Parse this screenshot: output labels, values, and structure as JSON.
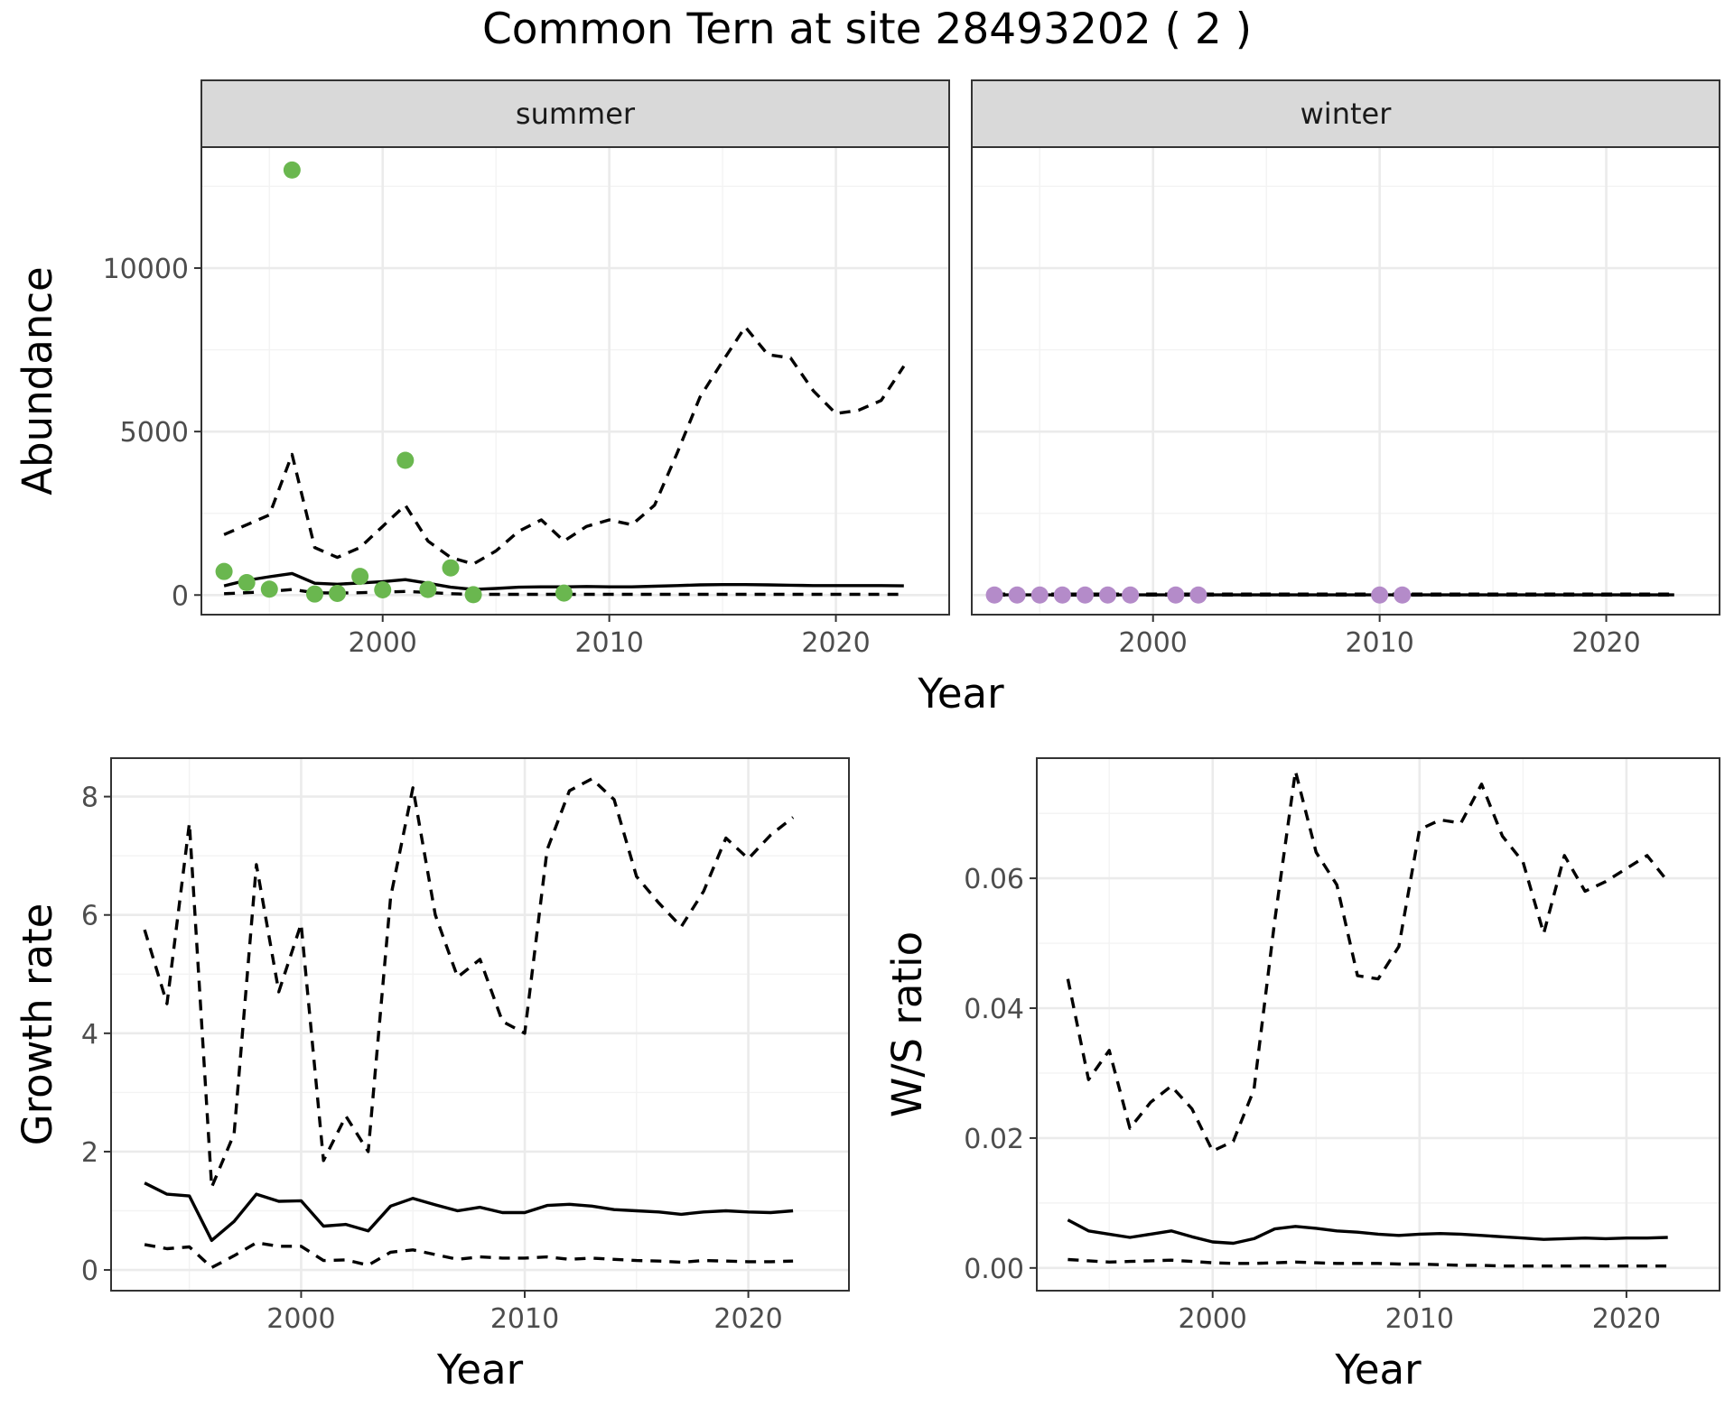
{
  "title": "Common Tern at site 28493202 ( 2 )",
  "colors": {
    "summer_points": "#6ab74f",
    "winter_points": "#b48bc9",
    "strip_fill": "#d9d9d9",
    "lines": "#000000"
  },
  "chart_data": [
    {
      "type": "line",
      "panel": "summer",
      "strip": "summer",
      "xlabel": "",
      "ylabel": "Abundance",
      "xlim": [
        1992,
        2025
      ],
      "ylim": [
        -600,
        13700
      ],
      "xticks": [
        2000,
        2010,
        2020
      ],
      "yticks": [
        0,
        5000,
        10000
      ],
      "ytick_labels": [
        "0",
        "5000",
        "10000"
      ],
      "x": [
        1993,
        1994,
        1995,
        1996,
        1997,
        1998,
        1999,
        2000,
        2001,
        2002,
        2003,
        2004,
        2005,
        2006,
        2007,
        2008,
        2009,
        2010,
        2011,
        2012,
        2013,
        2014,
        2015,
        2016,
        2017,
        2018,
        2019,
        2020,
        2021,
        2022,
        2023
      ],
      "series": [
        {
          "role": "upper",
          "style": "dashed",
          "values": [
            1850,
            2150,
            2450,
            4300,
            1450,
            1150,
            1450,
            2100,
            2750,
            1650,
            1150,
            950,
            1350,
            1950,
            2300,
            1650,
            2100,
            2300,
            2150,
            2750,
            4350,
            6050,
            7150,
            8200,
            7350,
            7250,
            6250,
            5550,
            5650,
            5950,
            7000
          ]
        },
        {
          "role": "estimate",
          "style": "solid",
          "values": [
            280,
            450,
            560,
            660,
            360,
            330,
            370,
            410,
            470,
            360,
            240,
            170,
            200,
            240,
            250,
            250,
            260,
            250,
            250,
            270,
            290,
            310,
            320,
            320,
            310,
            300,
            290,
            290,
            290,
            290,
            280
          ]
        },
        {
          "role": "lower",
          "style": "dashed",
          "values": [
            40,
            70,
            110,
            170,
            70,
            60,
            70,
            90,
            110,
            80,
            40,
            20,
            20,
            20,
            20,
            20,
            20,
            20,
            20,
            20,
            20,
            20,
            20,
            20,
            20,
            20,
            20,
            20,
            20,
            20,
            20
          ]
        }
      ],
      "points": {
        "x": [
          1993,
          1994,
          1995,
          1996,
          1997,
          1998,
          1999,
          2000,
          2001,
          2002,
          2003,
          2004,
          2008
        ],
        "y": [
          720,
          380,
          180,
          13000,
          30,
          50,
          570,
          160,
          4120,
          170,
          830,
          10,
          60
        ]
      }
    },
    {
      "type": "line",
      "panel": "winter",
      "strip": "winter",
      "xlabel": "",
      "ylabel": "",
      "xlim": [
        1992,
        2025
      ],
      "ylim": [
        -600,
        13700
      ],
      "xticks": [
        2000,
        2010,
        2020
      ],
      "x": [
        1993,
        2023
      ],
      "series": [
        {
          "role": "upper",
          "style": "dashed",
          "values": [
            30,
            30
          ]
        },
        {
          "role": "estimate",
          "style": "solid",
          "values": [
            5,
            5
          ]
        },
        {
          "role": "lower",
          "style": "dashed",
          "values": [
            0,
            0
          ]
        }
      ],
      "points": {
        "x": [
          1993,
          1994,
          1995,
          1996,
          1997,
          1998,
          1999,
          2001,
          2002,
          2010,
          2011
        ],
        "y": [
          0,
          0,
          0,
          0,
          0,
          0,
          0,
          0,
          0,
          0,
          0
        ]
      }
    },
    {
      "type": "line",
      "panel": "growth",
      "xlabel": "Year",
      "ylabel": "Growth rate",
      "xlim": [
        1991.5,
        2024.5
      ],
      "ylim": [
        -0.35,
        8.65
      ],
      "xticks": [
        2000,
        2010,
        2020
      ],
      "yticks": [
        0,
        2,
        4,
        6,
        8
      ],
      "ytick_labels": [
        "0",
        "2",
        "4",
        "6",
        "8"
      ],
      "x": [
        1993,
        1994,
        1995,
        1996,
        1997,
        1998,
        1999,
        2000,
        2001,
        2002,
        2003,
        2004,
        2005,
        2006,
        2007,
        2008,
        2009,
        2010,
        2011,
        2012,
        2013,
        2014,
        2015,
        2016,
        2017,
        2018,
        2019,
        2020,
        2021,
        2022
      ],
      "series": [
        {
          "role": "upper",
          "style": "dashed",
          "values": [
            5.75,
            4.5,
            7.55,
            1.4,
            2.3,
            6.85,
            4.7,
            5.85,
            1.85,
            2.6,
            2.0,
            6.3,
            8.15,
            6.0,
            4.95,
            5.25,
            4.2,
            4.0,
            7.1,
            8.1,
            8.3,
            7.95,
            6.65,
            6.2,
            5.8,
            6.4,
            7.3,
            6.95,
            7.35,
            7.65
          ]
        },
        {
          "role": "estimate",
          "style": "solid",
          "values": [
            1.47,
            1.28,
            1.25,
            0.5,
            0.82,
            1.28,
            1.16,
            1.17,
            0.74,
            0.77,
            0.66,
            1.08,
            1.21,
            1.1,
            1.0,
            1.06,
            0.97,
            0.97,
            1.09,
            1.11,
            1.08,
            1.02,
            1.0,
            0.98,
            0.94,
            0.98,
            1.0,
            0.98,
            0.97,
            1.0
          ]
        },
        {
          "role": "lower",
          "style": "dashed",
          "values": [
            0.43,
            0.36,
            0.39,
            0.04,
            0.24,
            0.46,
            0.4,
            0.4,
            0.16,
            0.17,
            0.08,
            0.3,
            0.34,
            0.26,
            0.18,
            0.22,
            0.2,
            0.2,
            0.22,
            0.18,
            0.2,
            0.18,
            0.16,
            0.15,
            0.13,
            0.16,
            0.15,
            0.14,
            0.14,
            0.15
          ]
        }
      ]
    },
    {
      "type": "line",
      "panel": "ws_ratio",
      "xlabel": "Year",
      "ylabel": "W/S ratio",
      "xlim": [
        1991.5,
        2024.5
      ],
      "ylim": [
        -0.0035,
        0.0785
      ],
      "xticks": [
        2000,
        2010,
        2020
      ],
      "yticks": [
        0,
        0.02,
        0.04,
        0.06
      ],
      "ytick_labels": [
        "0.00",
        "0.02",
        "0.04",
        "0.06"
      ],
      "x": [
        1993,
        1994,
        1995,
        1996,
        1997,
        1998,
        1999,
        2000,
        2001,
        2002,
        2003,
        2004,
        2005,
        2006,
        2007,
        2008,
        2009,
        2010,
        2011,
        2012,
        2013,
        2014,
        2015,
        2016,
        2017,
        2018,
        2019,
        2020,
        2021,
        2022
      ],
      "series": [
        {
          "role": "upper",
          "style": "dashed",
          "values": [
            0.0445,
            0.029,
            0.0335,
            0.0215,
            0.0255,
            0.028,
            0.0245,
            0.018,
            0.0195,
            0.0275,
            0.0535,
            0.0765,
            0.064,
            0.059,
            0.045,
            0.0445,
            0.0495,
            0.0675,
            0.069,
            0.0685,
            0.0745,
            0.0665,
            0.0625,
            0.0515,
            0.0635,
            0.058,
            0.0595,
            0.0615,
            0.0635,
            0.0595
          ]
        },
        {
          "role": "estimate",
          "style": "solid",
          "values": [
            0.0074,
            0.0057,
            0.0052,
            0.0047,
            0.0052,
            0.0057,
            0.0048,
            0.004,
            0.0038,
            0.0045,
            0.006,
            0.0064,
            0.0061,
            0.0057,
            0.0055,
            0.0052,
            0.005,
            0.0052,
            0.0053,
            0.0052,
            0.005,
            0.0048,
            0.0046,
            0.0044,
            0.0045,
            0.0046,
            0.0045,
            0.0046,
            0.0046,
            0.0047
          ]
        },
        {
          "role": "lower",
          "style": "dashed",
          "values": [
            0.0013,
            0.0011,
            0.0009,
            0.001,
            0.0011,
            0.0012,
            0.001,
            0.0008,
            0.0007,
            0.0007,
            0.0008,
            0.0009,
            0.0008,
            0.0007,
            0.0007,
            0.0007,
            0.0006,
            0.0006,
            0.0005,
            0.0004,
            0.0004,
            0.0003,
            0.0003,
            0.0003,
            0.0003,
            0.0003,
            0.0003,
            0.0003,
            0.0003,
            0.0003
          ]
        }
      ]
    }
  ],
  "shared_top_xlabel": "Year"
}
